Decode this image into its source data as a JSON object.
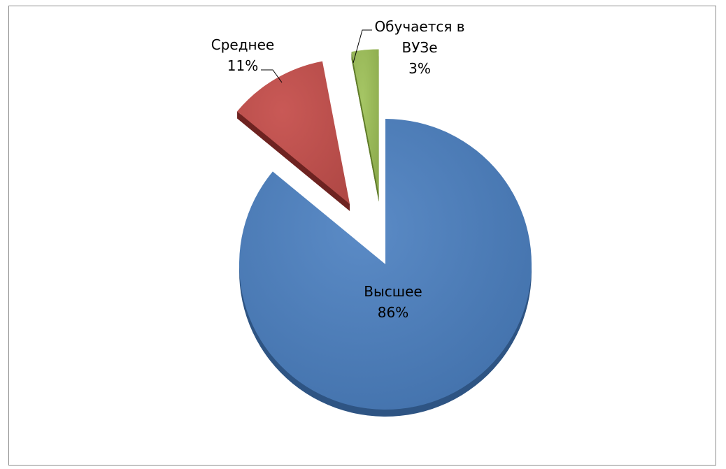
{
  "chart_data": {
    "type": "pie",
    "title": "",
    "style": "3d-exploded",
    "slices": [
      {
        "name": "Высшее",
        "value": 86,
        "label_lines": [
          "Высшее",
          "86%"
        ],
        "color": "#4F81BD",
        "side_color": "#2E5483",
        "explode": false
      },
      {
        "name": "Среднее",
        "value": 11,
        "label_lines": [
          "Среднее",
          "11%"
        ],
        "color": "#C0504D",
        "side_color": "#6E2321",
        "explode": true
      },
      {
        "name": "Обучается в ВУЗе",
        "value": 3,
        "label_lines": [
          "Обучается в",
          "ВУЗе",
          "3%"
        ],
        "color": "#9BBB59",
        "side_color": "#5E7A28",
        "explode": true
      }
    ],
    "legend": "none",
    "start_angle_deg": 0,
    "direction": "clockwise"
  }
}
